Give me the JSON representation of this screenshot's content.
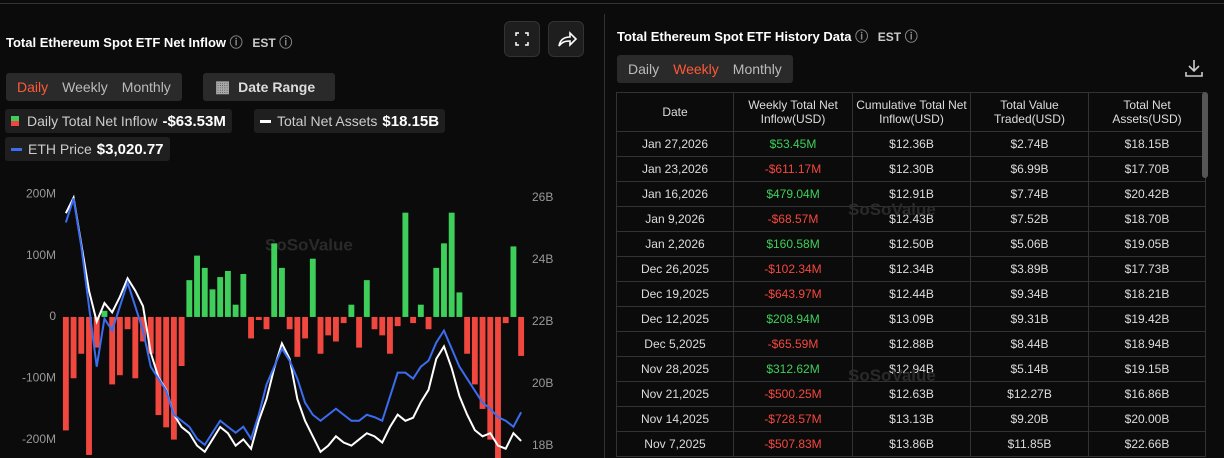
{
  "header": {
    "title": "Total Ethereum Spot ETF Net Inflow",
    "timezone": "EST",
    "tabs": [
      "Daily",
      "Weekly",
      "Monthly"
    ],
    "date_range": "Date Range"
  },
  "legend_values": [
    "-$63.53M",
    "$18.15B",
    "$3,020.77"
  ],
  "watermark": "SoSoValue",
  "chart_data": {
    "type": "bar",
    "categories": [
      null,
      null,
      null,
      null,
      null,
      null,
      null,
      null,
      null,
      null,
      null,
      null,
      null,
      null,
      null,
      null,
      null,
      null,
      null,
      null,
      null,
      null,
      null,
      null,
      null,
      null,
      null,
      null,
      null,
      null,
      null,
      null,
      null,
      null,
      null,
      null,
      null,
      null,
      null,
      null,
      null,
      null,
      null,
      null,
      null,
      null,
      null,
      null,
      null,
      null,
      null,
      null,
      null,
      null,
      null,
      null,
      null,
      null,
      null,
      null
    ],
    "series": [
      {
        "name": "Daily Total Net Inflow",
        "positive_color": "#3ecf5a",
        "negative_color": "#f0483e",
        "values": [
          -185,
          -100,
          -60,
          -225,
          -50,
          10,
          -110,
          -95,
          -20,
          -100,
          -40,
          -60,
          -160,
          -180,
          -200,
          -80,
          60,
          100,
          80,
          45,
          65,
          75,
          20,
          70,
          -35,
          -5,
          -20,
          120,
          80,
          -20,
          -65,
          -35,
          95,
          -60,
          -30,
          -40,
          -10,
          20,
          -50,
          60,
          -20,
          -30,
          -60,
          -15,
          170,
          -10,
          20,
          -20,
          80,
          120,
          170,
          40,
          -60,
          -110,
          -150,
          -200,
          -230,
          -10,
          115,
          -63.53
        ]
      },
      {
        "name": "Total Net Assets",
        "color": "#ffffff",
        "axis": "y2",
        "values": [
          25.5,
          26.0,
          24.5,
          23.0,
          22.0,
          22.6,
          22.3,
          22.8,
          23.4,
          23.0,
          22.5,
          21.0,
          20.2,
          19.8,
          19.0,
          18.6,
          18.4,
          18.0,
          17.8,
          18.2,
          18.6,
          18.4,
          18.0,
          18.2,
          17.9,
          18.8,
          19.5,
          20.5,
          21.3,
          20.8,
          19.5,
          18.8,
          18.3,
          17.8,
          18.0,
          18.3,
          18.1,
          18.0,
          18.2,
          18.4,
          18.3,
          18.1,
          18.6,
          19.0,
          18.8,
          18.9,
          19.4,
          19.8,
          20.8,
          21.2,
          20.5,
          19.6,
          19.0,
          18.5,
          18.3,
          18.4,
          18.0,
          17.9,
          18.4,
          18.15
        ]
      },
      {
        "name": "ETH Price",
        "color": "#3a6df0",
        "axis": "y3",
        "values": [
          4600,
          4800,
          4400,
          3900,
          3400,
          3800,
          3700,
          3900,
          4100,
          3900,
          3700,
          3400,
          3300,
          3200,
          3000,
          2950,
          2900,
          2800,
          2750,
          2850,
          2950,
          2900,
          2850,
          2900,
          2800,
          3000,
          3250,
          3400,
          3550,
          3450,
          3300,
          3100,
          3000,
          2950,
          3000,
          3050,
          3000,
          2950,
          2950,
          3000,
          2980,
          2950,
          3150,
          3350,
          3350,
          3300,
          3400,
          3450,
          3600,
          3700,
          3550,
          3400,
          3300,
          3200,
          3100,
          3050,
          2980,
          2950,
          2900,
          3020.77
        ]
      }
    ],
    "ylim": [
      -230,
      207
    ],
    "yticks": [
      {
        "value": 200,
        "label": "200M"
      },
      {
        "value": 100,
        "label": "100M"
      },
      0,
      {
        "value": -100,
        "label": "-100M"
      },
      {
        "value": -200,
        "label": "-200M"
      }
    ],
    "y2lim": [
      17.6,
      26.25
    ],
    "y2ticks": [
      {
        "value": 26,
        "label": "26B"
      },
      {
        "value": 24,
        "label": "24B"
      },
      {
        "value": 22,
        "label": "22B"
      },
      {
        "value": 20,
        "label": "20B"
      },
      {
        "value": 18,
        "label": "18B"
      }
    ],
    "y3lim": [
      2640,
      4870
    ]
  },
  "history": {
    "title": "Total Ethereum Spot ETF History Data",
    "timezone": "EST",
    "tabs": [
      "Daily",
      "Weekly",
      "Monthly"
    ],
    "columns": [
      "Date",
      "Weekly Total Net Inflow(USD)",
      "Cumulative Total Net Inflow(USD)",
      "Total Value Traded(USD)",
      "Total Net Assets(USD)"
    ],
    "rows": [
      [
        "Jan 27,2026",
        "$53.45M",
        "$12.36B",
        "$2.74B",
        "$18.15B"
      ],
      [
        "Jan 23,2026",
        "-$611.17M",
        "$12.30B",
        "$6.99B",
        "$17.70B"
      ],
      [
        "Jan 16,2026",
        "$479.04M",
        "$12.91B",
        "$7.74B",
        "$20.42B"
      ],
      [
        "Jan 9,2026",
        "-$68.57M",
        "$12.43B",
        "$7.52B",
        "$18.70B"
      ],
      [
        "Jan 2,2026",
        "$160.58M",
        "$12.50B",
        "$5.06B",
        "$19.05B"
      ],
      [
        "Dec 26,2025",
        "-$102.34M",
        "$12.34B",
        "$3.89B",
        "$17.73B"
      ],
      [
        "Dec 19,2025",
        "-$643.97M",
        "$12.44B",
        "$9.34B",
        "$18.21B"
      ],
      [
        "Dec 12,2025",
        "$208.94M",
        "$13.09B",
        "$9.31B",
        "$19.42B"
      ],
      [
        "Dec 5,2025",
        "-$65.59M",
        "$12.88B",
        "$8.44B",
        "$18.94B"
      ],
      [
        "Nov 28,2025",
        "$312.62M",
        "$12.94B",
        "$5.14B",
        "$19.15B"
      ],
      [
        "Nov 21,2025",
        "-$500.25M",
        "$12.63B",
        "$12.27B",
        "$16.86B"
      ],
      [
        "Nov 14,2025",
        "-$728.57M",
        "$13.13B",
        "$9.20B",
        "$20.00B"
      ],
      [
        "Nov 7,2025",
        "-$507.83M",
        "$13.86B",
        "$11.85B",
        "$22.66B"
      ]
    ]
  }
}
